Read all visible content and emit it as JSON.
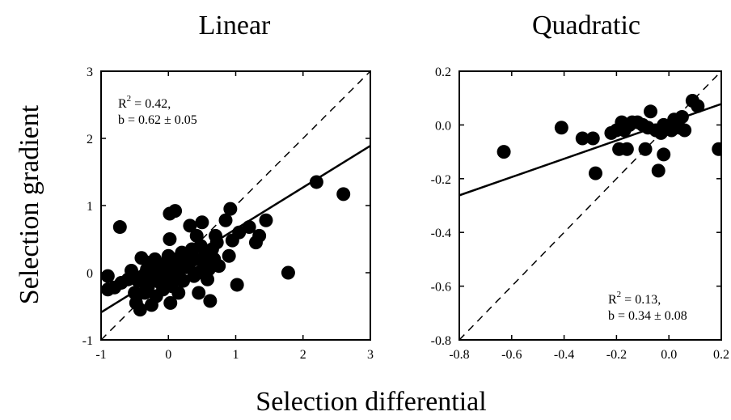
{
  "figure": {
    "ylabel": "Selection gradient",
    "xlabel": "Selection differential"
  },
  "chart_data": [
    {
      "type": "scatter",
      "title": "Linear",
      "xlim": [
        -1,
        3
      ],
      "ylim": [
        -1,
        3
      ],
      "xticks": [
        -1,
        0,
        1,
        2,
        3
      ],
      "yticks": [
        -1,
        0,
        1,
        2,
        3
      ],
      "xtick_labels": [
        "-1",
        "0",
        "1",
        "2",
        "3"
      ],
      "ytick_labels": [
        "-1",
        "0",
        "1",
        "2",
        "3"
      ],
      "grid": false,
      "annotation": {
        "line1": "R",
        "sup": "2",
        "line1_rest": " = 0.42,",
        "line2": "b = 0.62 ± 0.05",
        "position": "top-left"
      },
      "fit_line": {
        "slope": 0.62,
        "intercept": 0.03
      },
      "identity_line": true,
      "points": [
        [
          -0.9,
          -0.05
        ],
        [
          -0.9,
          -0.25
        ],
        [
          -0.8,
          -0.22
        ],
        [
          -0.72,
          0.68
        ],
        [
          -0.7,
          -0.15
        ],
        [
          -0.6,
          -0.1
        ],
        [
          -0.55,
          0.03
        ],
        [
          -0.5,
          -0.3
        ],
        [
          -0.48,
          -0.45
        ],
        [
          -0.45,
          -0.12
        ],
        [
          -0.42,
          -0.55
        ],
        [
          -0.4,
          0.22
        ],
        [
          -0.38,
          -0.05
        ],
        [
          -0.35,
          -0.3
        ],
        [
          -0.32,
          0.05
        ],
        [
          -0.3,
          -0.2
        ],
        [
          -0.28,
          0.15
        ],
        [
          -0.25,
          -0.48
        ],
        [
          -0.22,
          -0.08
        ],
        [
          -0.2,
          0.2
        ],
        [
          -0.18,
          -0.35
        ],
        [
          -0.15,
          0.05
        ],
        [
          -0.12,
          -0.15
        ],
        [
          -0.1,
          0.1
        ],
        [
          -0.08,
          -0.25
        ],
        [
          -0.05,
          0.0
        ],
        [
          -0.03,
          0.15
        ],
        [
          0.0,
          -0.1
        ],
        [
          0.0,
          0.25
        ],
        [
          0.02,
          0.88
        ],
        [
          0.02,
          0.5
        ],
        [
          0.03,
          -0.45
        ],
        [
          0.05,
          -0.2
        ],
        [
          0.05,
          0.05
        ],
        [
          0.08,
          0.12
        ],
        [
          0.1,
          -0.05
        ],
        [
          0.1,
          0.92
        ],
        [
          0.12,
          0.2
        ],
        [
          0.15,
          -0.3
        ],
        [
          0.15,
          0.0
        ],
        [
          0.18,
          0.15
        ],
        [
          0.2,
          0.3
        ],
        [
          0.22,
          -0.12
        ],
        [
          0.25,
          0.08
        ],
        [
          0.28,
          0.25
        ],
        [
          0.3,
          0.1
        ],
        [
          0.32,
          0.7
        ],
        [
          0.35,
          0.35
        ],
        [
          0.38,
          -0.05
        ],
        [
          0.4,
          0.2
        ],
        [
          0.42,
          0.55
        ],
        [
          0.45,
          0.0
        ],
        [
          0.45,
          -0.3
        ],
        [
          0.48,
          0.4
        ],
        [
          0.5,
          0.75
        ],
        [
          0.52,
          0.15
        ],
        [
          0.55,
          0.3
        ],
        [
          0.58,
          -0.1
        ],
        [
          0.6,
          0.05
        ],
        [
          0.62,
          -0.42
        ],
        [
          0.65,
          0.35
        ],
        [
          0.68,
          0.2
        ],
        [
          0.7,
          0.55
        ],
        [
          0.72,
          0.45
        ],
        [
          0.75,
          0.1
        ],
        [
          0.85,
          0.78
        ],
        [
          0.9,
          0.25
        ],
        [
          0.92,
          0.95
        ],
        [
          0.95,
          0.48
        ],
        [
          1.02,
          -0.18
        ],
        [
          1.05,
          0.6
        ],
        [
          1.2,
          0.68
        ],
        [
          1.3,
          0.45
        ],
        [
          1.35,
          0.55
        ],
        [
          1.45,
          0.78
        ],
        [
          1.78,
          0.0
        ],
        [
          2.2,
          1.35
        ],
        [
          2.6,
          1.17
        ]
      ]
    },
    {
      "type": "scatter",
      "title": "Quadratic",
      "xlim": [
        -0.8,
        0.2
      ],
      "ylim": [
        -0.8,
        0.2
      ],
      "xticks": [
        -0.8,
        -0.6,
        -0.4,
        -0.2,
        0.0,
        0.2
      ],
      "yticks": [
        -0.8,
        -0.6,
        -0.4,
        -0.2,
        0.0,
        0.2
      ],
      "xtick_labels": [
        "-0.8",
        "-0.6",
        "-0.4",
        "-0.2",
        "0.0",
        "0.2"
      ],
      "ytick_labels": [
        "-0.8",
        "-0.6",
        "-0.4",
        "-0.2",
        "0.0",
        "0.2"
      ],
      "grid": false,
      "annotation": {
        "line1": "R",
        "sup": "2",
        "line1_rest": " = 0.13,",
        "line2": "b = 0.34 ± 0.08",
        "position": "bottom-right"
      },
      "fit_line": {
        "slope": 0.34,
        "intercept": 0.01
      },
      "identity_line": true,
      "points": [
        [
          -0.63,
          -0.1
        ],
        [
          -0.41,
          -0.01
        ],
        [
          -0.33,
          -0.05
        ],
        [
          -0.29,
          -0.05
        ],
        [
          -0.28,
          -0.18
        ],
        [
          -0.22,
          -0.03
        ],
        [
          -0.2,
          -0.02
        ],
        [
          -0.19,
          -0.09
        ],
        [
          -0.18,
          0.01
        ],
        [
          -0.17,
          -0.02
        ],
        [
          -0.16,
          -0.09
        ],
        [
          -0.15,
          0.0
        ],
        [
          -0.14,
          0.01
        ],
        [
          -0.12,
          0.01
        ],
        [
          -0.1,
          0.0
        ],
        [
          -0.09,
          -0.09
        ],
        [
          -0.08,
          -0.01
        ],
        [
          -0.07,
          0.05
        ],
        [
          -0.05,
          -0.02
        ],
        [
          -0.04,
          -0.17
        ],
        [
          -0.03,
          -0.03
        ],
        [
          -0.02,
          0.0
        ],
        [
          -0.02,
          -0.11
        ],
        [
          0.0,
          -0.01
        ],
        [
          0.01,
          -0.02
        ],
        [
          0.02,
          0.02
        ],
        [
          0.03,
          0.0
        ],
        [
          0.04,
          -0.01
        ],
        [
          0.05,
          0.03
        ],
        [
          0.06,
          -0.02
        ],
        [
          0.09,
          0.09
        ],
        [
          0.11,
          0.07
        ],
        [
          0.19,
          -0.09
        ]
      ]
    }
  ]
}
